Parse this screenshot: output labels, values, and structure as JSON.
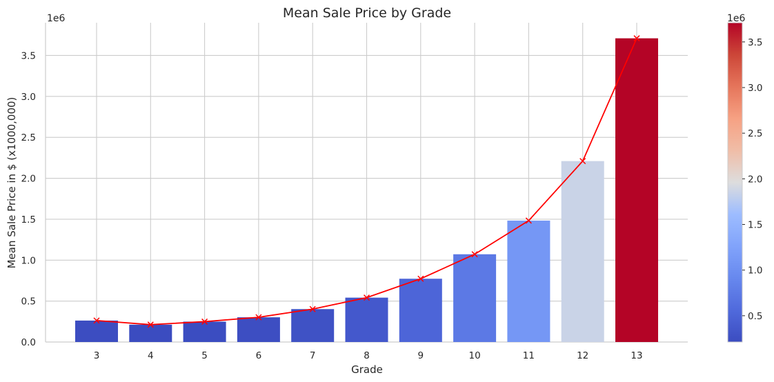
{
  "chart_data": {
    "type": "bar",
    "title": "Mean Sale Price by Grade",
    "xlabel": "Grade",
    "ylabel": "Mean Sale Price in $ (x1000,000)",
    "y_offset_label": "1e6",
    "categories": [
      "3",
      "4",
      "5",
      "6",
      "7",
      "8",
      "9",
      "10",
      "11",
      "12",
      "13"
    ],
    "values": [
      262000,
      212000,
      249000,
      302000,
      402000,
      542000,
      773000,
      1072000,
      1483000,
      2210000,
      3710000
    ],
    "ylim": [
      0,
      3900000
    ],
    "yticks": [
      0,
      500000,
      1000000,
      1500000,
      2000000,
      2500000,
      3000000,
      3500000
    ],
    "ytick_labels": [
      "0.0",
      "0.5",
      "1.0",
      "1.5",
      "2.0",
      "2.5",
      "3.0",
      "3.5"
    ],
    "grid": true,
    "overlay_line": {
      "marker": "x",
      "color": "#ff0000"
    },
    "colormap": "coolwarm",
    "colorbar": {
      "range": [
        212000,
        3710000
      ],
      "ticks": [
        500000,
        1000000,
        1500000,
        2000000,
        2500000,
        3000000,
        3500000
      ],
      "tick_labels": [
        "0.5",
        "1.0",
        "1.5",
        "2.0",
        "2.5",
        "3.0",
        "3.5"
      ],
      "offset_label": "1e6"
    }
  }
}
